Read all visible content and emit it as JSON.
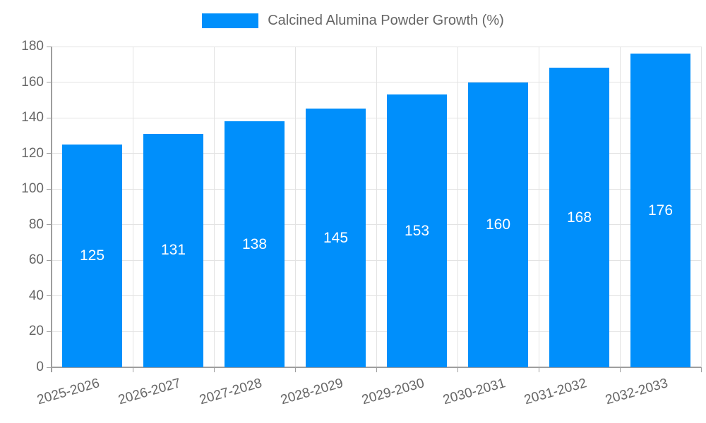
{
  "legend": {
    "label": "Calcined Alumina Powder Growth (%)"
  },
  "chart_data": {
    "type": "bar",
    "title": "Calcined Alumina Powder Growth (%)",
    "categories": [
      "2025-2026",
      "2026-2027",
      "2027-2028",
      "2028-2029",
      "2029-2030",
      "2030-2031",
      "2031-2032",
      "2032-2033"
    ],
    "values": [
      125,
      131,
      138,
      145,
      153,
      160,
      168,
      176
    ],
    "xlabel": "",
    "ylabel": "",
    "ylim": [
      0,
      180
    ],
    "ytick_step": 20,
    "yticks": [
      0,
      20,
      40,
      60,
      80,
      100,
      120,
      140,
      160,
      180
    ],
    "grid": true,
    "legend_position": "top",
    "value_labels_position": "inside-center",
    "colors": {
      "bar": "#008FFB",
      "grid": "#e3e3e3",
      "axis": "#9e9e9e",
      "tick_text": "#666666",
      "value_label": "#ffffff",
      "background": "#ffffff"
    }
  }
}
